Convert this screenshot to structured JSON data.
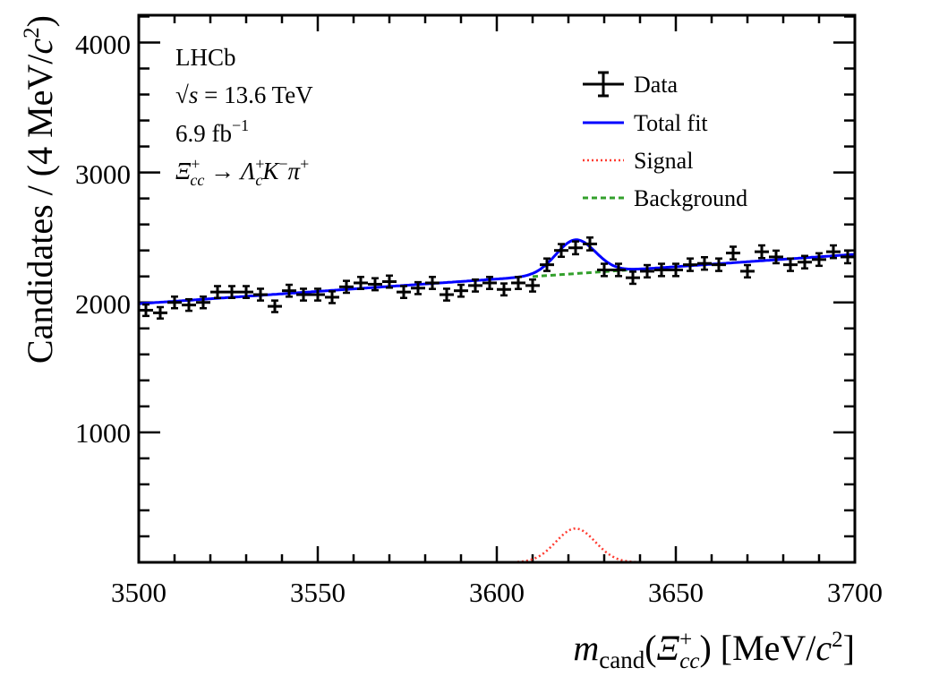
{
  "chart_data": {
    "type": "scatter",
    "title": "",
    "xlabel_parts": {
      "m": "m",
      "sub": "cand",
      "open": "(",
      "xi": "Ξ",
      "xi_sup": "+",
      "xi_sub": "cc",
      "close": ") [MeV/",
      "c": "c",
      "sq": "2",
      "end": "]"
    },
    "ylabel_parts": {
      "main": "Candidates / (4 MeV/",
      "c": "c",
      "sq": "2",
      "end": ")"
    },
    "xlim": [
      3500,
      3700
    ],
    "ylim": [
      0,
      4210
    ],
    "x_ticks": [
      "3500",
      "3550",
      "3600",
      "3650",
      "3700"
    ],
    "y_ticks": [
      "1000",
      "2000",
      "3000",
      "4000"
    ],
    "grid": false,
    "legend_position": "top-right",
    "legend": [
      {
        "label": "Data",
        "style": "errorbar",
        "color": "#000000"
      },
      {
        "label": "Total fit",
        "style": "solid",
        "color": "#0000ff"
      },
      {
        "label": "Signal",
        "style": "dotted",
        "color": "#ff3b30"
      },
      {
        "label": "Background",
        "style": "dashed",
        "color": "#33a02c"
      }
    ],
    "annotations": {
      "experiment": "LHCb",
      "energy_sqrt": "√",
      "energy_s": "s",
      "energy_rest": " = 13.6 TeV",
      "lumi": "6.9 fb",
      "lumi_sup": "−1",
      "decay": {
        "xi": "Ξ",
        "xi_sup": "+",
        "xi_sub": "cc",
        "arrow": " → ",
        "lam": "Λ",
        "lam_sup": "+",
        "lam_sub": "c",
        "k": "K",
        "k_sup": "−",
        "pi": "π",
        "pi_sup": "+"
      }
    },
    "bin_width": 4,
    "data": {
      "x": [
        3502,
        3506,
        3510,
        3514,
        3518,
        3522,
        3526,
        3530,
        3534,
        3538,
        3542,
        3546,
        3550,
        3554,
        3558,
        3562,
        3566,
        3570,
        3574,
        3578,
        3582,
        3586,
        3590,
        3594,
        3598,
        3602,
        3606,
        3610,
        3614,
        3618,
        3622,
        3626,
        3630,
        3634,
        3638,
        3642,
        3646,
        3650,
        3654,
        3658,
        3662,
        3666,
        3670,
        3674,
        3678,
        3682,
        3686,
        3690,
        3694,
        3698
      ],
      "y": [
        1940,
        1920,
        2000,
        1980,
        2000,
        2080,
        2080,
        2080,
        2060,
        1970,
        2090,
        2060,
        2060,
        2040,
        2120,
        2150,
        2140,
        2160,
        2080,
        2110,
        2150,
        2060,
        2090,
        2130,
        2150,
        2100,
        2150,
        2130,
        2290,
        2400,
        2420,
        2450,
        2250,
        2250,
        2190,
        2240,
        2250,
        2250,
        2290,
        2300,
        2290,
        2380,
        2240,
        2390,
        2350,
        2290,
        2310,
        2330,
        2390,
        2350
      ]
    },
    "fit": {
      "background": {
        "at_3500": 1990,
        "at_3700": 2370
      },
      "signal": {
        "mean": 3622,
        "sigma": 5.5,
        "peak": 260
      }
    }
  }
}
